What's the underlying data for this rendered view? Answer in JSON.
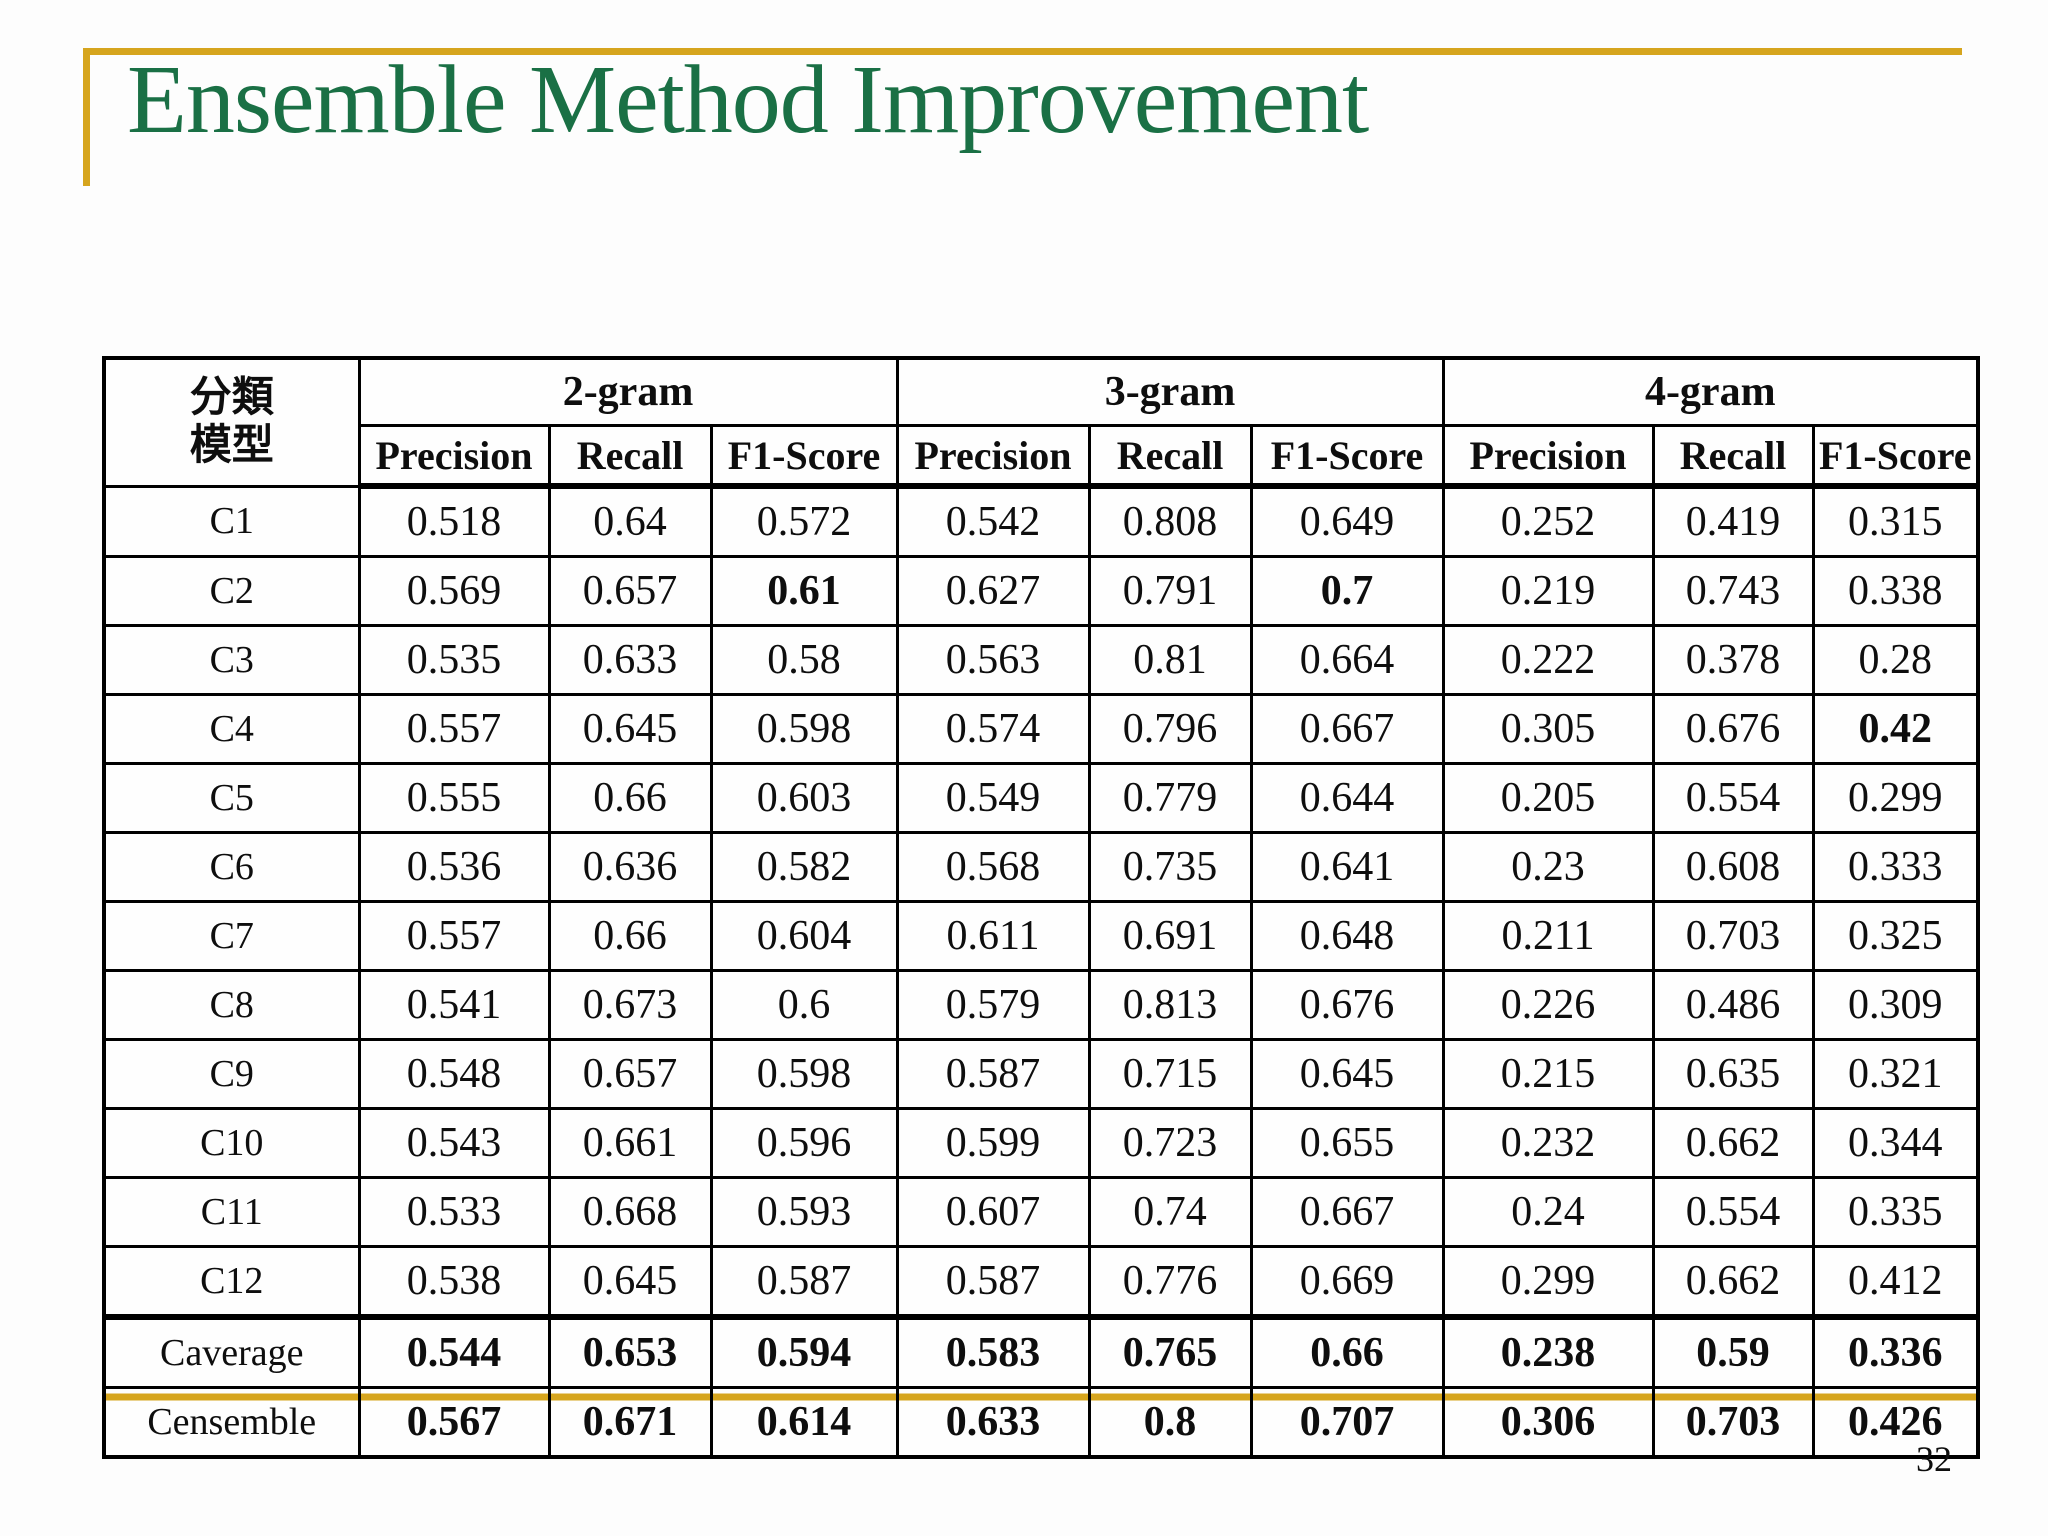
{
  "title": "Ensemble Method Improvement",
  "page_number": "32",
  "colors": {
    "title_green": "#1A7045",
    "accent_gold": "#D6A51E",
    "border_black": "#000000"
  },
  "table": {
    "corner_header_line1": "分類",
    "corner_header_line2": "模型",
    "groups": [
      {
        "label": "2-gram"
      },
      {
        "label": "3-gram"
      },
      {
        "label": "4-gram"
      }
    ],
    "metric_headers": [
      "Precision",
      "Recall",
      "F1-Score"
    ],
    "rows": [
      {
        "label": "C1",
        "values": [
          "0.518",
          "0.64",
          "0.572",
          "0.542",
          "0.808",
          "0.649",
          "0.252",
          "0.419",
          "0.315"
        ],
        "bold": []
      },
      {
        "label": "C2",
        "values": [
          "0.569",
          "0.657",
          "0.61",
          "0.627",
          "0.791",
          "0.7",
          "0.219",
          "0.743",
          "0.338"
        ],
        "bold": [
          2,
          5
        ]
      },
      {
        "label": "C3",
        "values": [
          "0.535",
          "0.633",
          "0.58",
          "0.563",
          "0.81",
          "0.664",
          "0.222",
          "0.378",
          "0.28"
        ],
        "bold": []
      },
      {
        "label": "C4",
        "values": [
          "0.557",
          "0.645",
          "0.598",
          "0.574",
          "0.796",
          "0.667",
          "0.305",
          "0.676",
          "0.42"
        ],
        "bold": [
          8
        ]
      },
      {
        "label": "C5",
        "values": [
          "0.555",
          "0.66",
          "0.603",
          "0.549",
          "0.779",
          "0.644",
          "0.205",
          "0.554",
          "0.299"
        ],
        "bold": []
      },
      {
        "label": "C6",
        "values": [
          "0.536",
          "0.636",
          "0.582",
          "0.568",
          "0.735",
          "0.641",
          "0.23",
          "0.608",
          "0.333"
        ],
        "bold": []
      },
      {
        "label": "C7",
        "values": [
          "0.557",
          "0.66",
          "0.604",
          "0.611",
          "0.691",
          "0.648",
          "0.211",
          "0.703",
          "0.325"
        ],
        "bold": []
      },
      {
        "label": "C8",
        "values": [
          "0.541",
          "0.673",
          "0.6",
          "0.579",
          "0.813",
          "0.676",
          "0.226",
          "0.486",
          "0.309"
        ],
        "bold": []
      },
      {
        "label": "C9",
        "values": [
          "0.548",
          "0.657",
          "0.598",
          "0.587",
          "0.715",
          "0.645",
          "0.215",
          "0.635",
          "0.321"
        ],
        "bold": []
      },
      {
        "label": "C10",
        "values": [
          "0.543",
          "0.661",
          "0.596",
          "0.599",
          "0.723",
          "0.655",
          "0.232",
          "0.662",
          "0.344"
        ],
        "bold": []
      },
      {
        "label": "C11",
        "values": [
          "0.533",
          "0.668",
          "0.593",
          "0.607",
          "0.74",
          "0.667",
          "0.24",
          "0.554",
          "0.335"
        ],
        "bold": []
      },
      {
        "label": "C12",
        "values": [
          "0.538",
          "0.645",
          "0.587",
          "0.587",
          "0.776",
          "0.669",
          "0.299",
          "0.662",
          "0.412"
        ],
        "bold": []
      },
      {
        "label": "Caverage",
        "values": [
          "0.544",
          "0.653",
          "0.594",
          "0.583",
          "0.765",
          "0.66",
          "0.238",
          "0.59",
          "0.336"
        ],
        "bold": "all",
        "thick_top": true
      },
      {
        "label": "Censemble",
        "values": [
          "0.567",
          "0.671",
          "0.614",
          "0.633",
          "0.8",
          "0.707",
          "0.306",
          "0.703",
          "0.426"
        ],
        "bold": "all",
        "gold_separator_above": true
      }
    ]
  }
}
